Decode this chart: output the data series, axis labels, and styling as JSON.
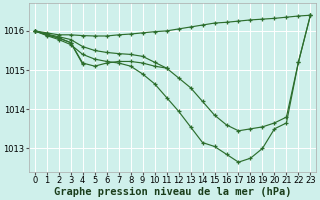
{
  "background_color": "#cff0eb",
  "grid_color": "#ffffff",
  "line_color": "#2d6e2d",
  "marker_color": "#2d6e2d",
  "xlabel": "Graphe pression niveau de la mer (hPa)",
  "xlabel_fontsize": 7.5,
  "tick_fontsize": 6,
  "xlim": [
    -0.5,
    23.5
  ],
  "ylim": [
    1012.4,
    1016.7
  ],
  "yticks": [
    1013,
    1014,
    1015,
    1016
  ],
  "xticks": [
    0,
    1,
    2,
    3,
    4,
    5,
    6,
    7,
    8,
    9,
    10,
    11,
    12,
    13,
    14,
    15,
    16,
    17,
    18,
    19,
    20,
    21,
    22,
    23
  ],
  "series": [
    {
      "x": [
        0,
        1,
        2,
        3,
        4,
        5,
        6,
        7,
        8,
        9,
        10,
        11,
        12,
        13,
        14,
        15,
        16,
        17,
        18,
        19,
        20,
        21,
        22,
        23
      ],
      "y": [
        1016.0,
        1015.95,
        1015.9,
        1015.9,
        1015.88,
        1015.87,
        1015.87,
        1015.9,
        1015.92,
        1015.95,
        1015.98,
        1016.0,
        1016.05,
        1016.1,
        1016.15,
        1016.2,
        1016.22,
        1016.25,
        1016.28,
        1016.3,
        1016.32,
        1016.35,
        1016.38,
        1016.4
      ]
    },
    {
      "x": [
        0,
        1,
        2,
        3,
        4,
        5,
        6,
        7,
        8,
        9,
        10,
        11,
        12,
        13,
        14,
        15,
        16,
        17,
        18,
        19,
        20,
        21,
        22,
        23
      ],
      "y": [
        1016.0,
        1015.92,
        1015.85,
        1015.78,
        1015.6,
        1015.5,
        1015.45,
        1015.42,
        1015.4,
        1015.35,
        1015.2,
        1015.05,
        1014.8,
        1014.55,
        1014.2,
        1013.85,
        1013.6,
        1013.45,
        1013.5,
        1013.55,
        1013.65,
        1013.8,
        1015.2,
        1016.4
      ]
    },
    {
      "x": [
        0,
        1,
        2,
        3,
        4,
        5,
        6,
        7,
        8,
        9,
        10,
        11,
        12,
        13,
        14,
        15,
        16,
        17,
        18,
        19,
        20,
        21,
        22,
        23
      ],
      "y": [
        1016.0,
        1015.88,
        1015.78,
        1015.65,
        1015.4,
        1015.28,
        1015.22,
        1015.18,
        1015.1,
        1014.9,
        1014.65,
        1014.3,
        1013.95,
        1013.55,
        1013.15,
        1013.05,
        1012.85,
        1012.65,
        1012.75,
        1013.0,
        1013.5,
        1013.65,
        1015.2,
        1016.4
      ]
    },
    {
      "x": [
        0,
        1,
        2,
        3,
        4
      ],
      "y": [
        1016.0,
        1015.9,
        1015.82,
        1015.7,
        1015.15
      ]
    },
    {
      "x": [
        0,
        1,
        2,
        3,
        4,
        5,
        6,
        7,
        8,
        9,
        10,
        11
      ],
      "y": [
        1016.0,
        1015.9,
        1015.82,
        1015.7,
        1015.18,
        1015.1,
        1015.18,
        1015.22,
        1015.22,
        1015.18,
        1015.1,
        1015.05
      ]
    }
  ]
}
